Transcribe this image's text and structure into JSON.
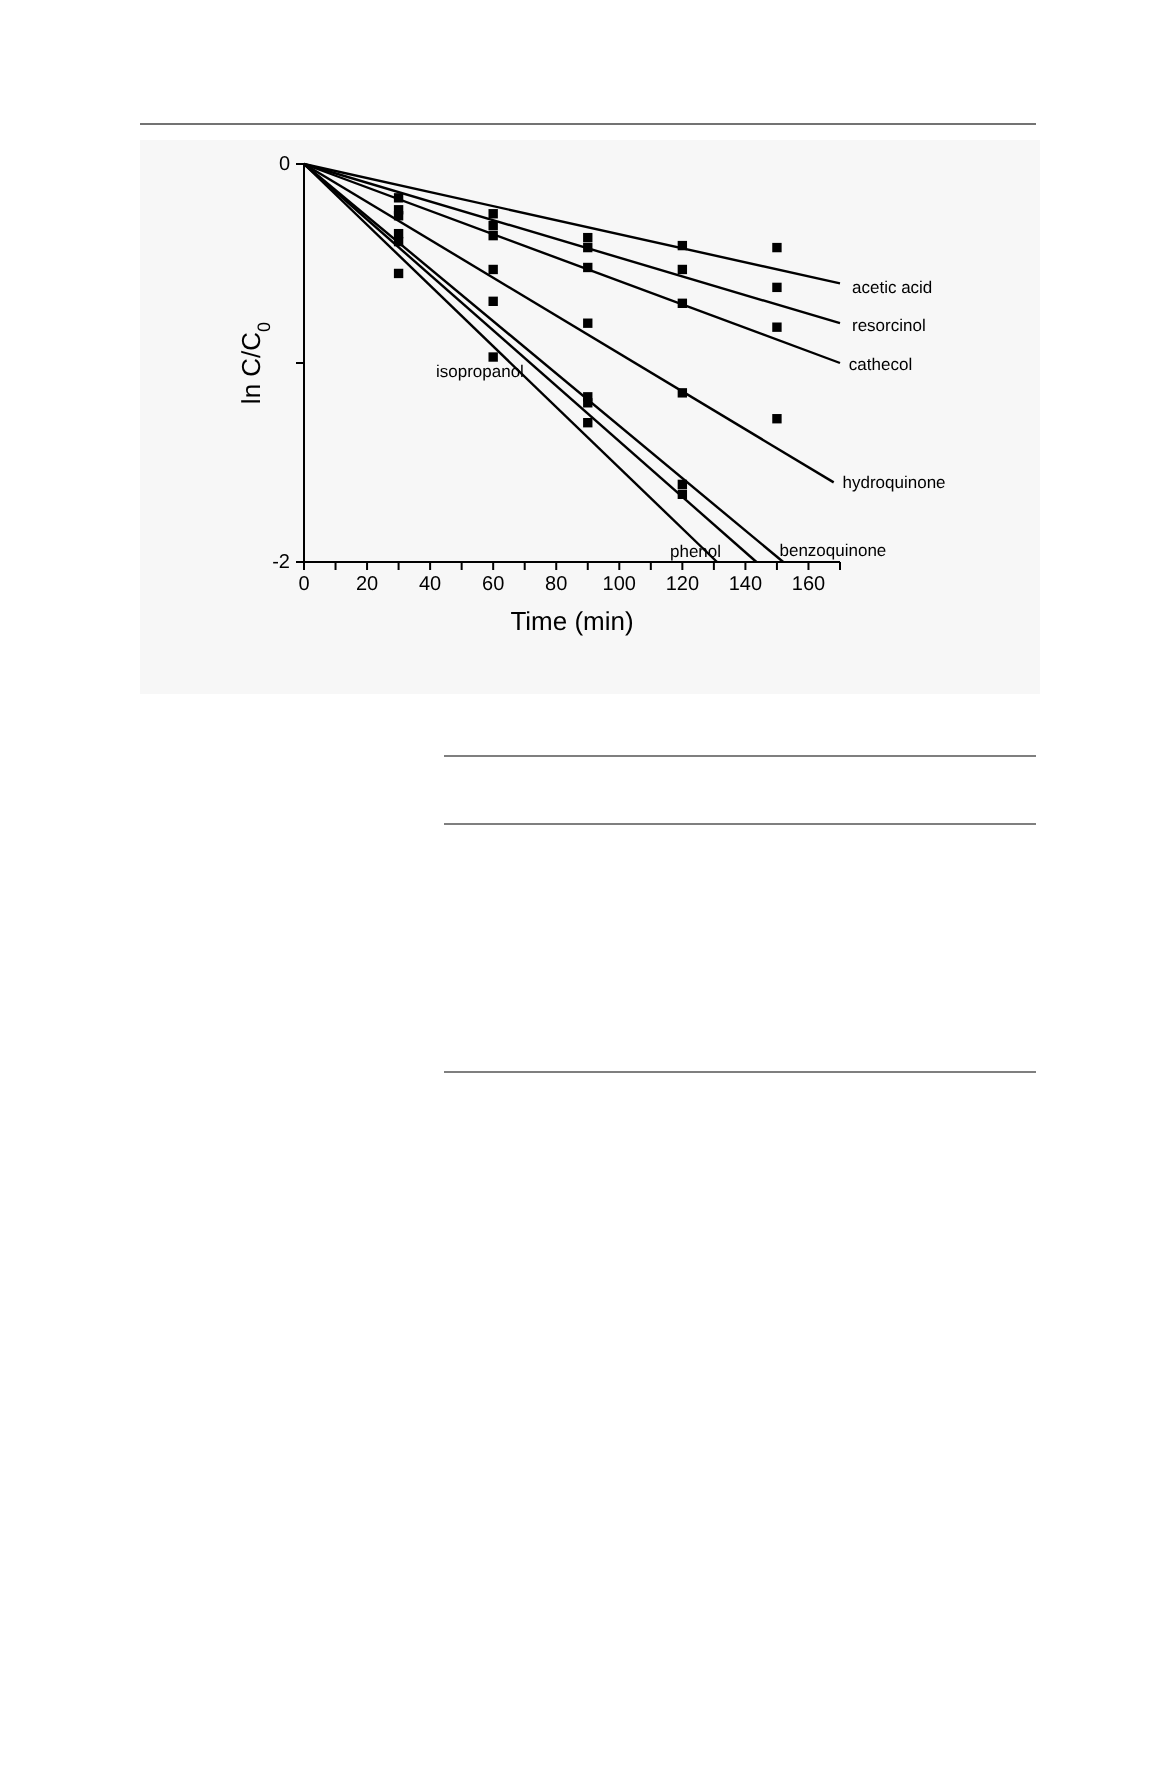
{
  "chart_data": {
    "type": "scatter",
    "xlabel": "Time (min)",
    "ylabel": "ln C/C$_{0}$",
    "xlim": [
      0,
      170
    ],
    "ylim": [
      -2,
      0
    ],
    "xticks": [
      0,
      {
        "value": 10,
        "label": null
      },
      20,
      {
        "value": 30,
        "label": null
      },
      40,
      {
        "value": 50,
        "label": null
      },
      60,
      {
        "value": 70,
        "label": null
      },
      80,
      {
        "value": 90,
        "label": null
      },
      100,
      {
        "value": 110,
        "label": null
      },
      120,
      {
        "value": 130,
        "label": null
      },
      140,
      {
        "value": 150,
        "label": null
      },
      160,
      {
        "value": 170,
        "label": null
      }
    ],
    "yticks": [
      -2,
      {
        "value": -1,
        "label": null
      },
      0
    ],
    "grid": false,
    "x": [
      30,
      60,
      90,
      120,
      150
    ],
    "series": [
      {
        "color": "#000000",
        "marker": "square",
        "values": [
          -0.17,
          -0.25,
          -0.37,
          -0.41,
          -0.42
        ]
      },
      {
        "color": "#000000",
        "marker": "square",
        "values": [
          -0.23,
          -0.31,
          -0.42,
          -0.53,
          -0.62
        ]
      },
      {
        "color": "#000000",
        "marker": "square",
        "values": [
          -0.26,
          -0.36,
          -0.52,
          -0.7,
          -0.82
        ]
      },
      {
        "color": "#000000",
        "marker": "square",
        "values": [
          -0.35,
          -0.53,
          -0.8,
          -1.15,
          -1.28
        ]
      },
      {
        "color": "#000000",
        "marker": "square",
        "values": [
          null,
          -0.69,
          -1.17,
          -1.61,
          null
        ]
      },
      {
        "color": "#000000",
        "marker": "square",
        "values": [
          -0.39,
          null,
          -1.2,
          -1.66,
          null
        ]
      },
      {
        "color": "#000000",
        "marker": "square",
        "values": [
          -0.55,
          -0.97,
          -1.3,
          null,
          null
        ]
      },
      {
        "type": "line",
        "color": "#000000",
        "x": [
          0,
          170
        ],
        "values": [
          0,
          -0.6
        ]
      },
      {
        "type": "line",
        "color": "#000000",
        "x": [
          0,
          170
        ],
        "values": [
          0,
          -0.8
        ]
      },
      {
        "type": "line",
        "color": "#000000",
        "x": [
          0,
          170
        ],
        "values": [
          0,
          -1.0
        ]
      },
      {
        "type": "line",
        "color": "#000000",
        "x": [
          0,
          168
        ],
        "values": [
          0,
          -1.6
        ]
      },
      {
        "type": "line",
        "color": "#000000",
        "x": [
          0,
          152
        ],
        "values": [
          0,
          -2
        ]
      },
      {
        "type": "line",
        "color": "#000000",
        "x": [
          0,
          143.5
        ],
        "values": [
          0,
          -2
        ]
      },
      {
        "type": "line",
        "color": "#000000",
        "x": [
          0,
          131
        ],
        "values": [
          0,
          -2
        ]
      }
    ],
    "annotations": [
      {
        "text": "acetic acid",
        "x": 170,
        "y": -0.62
      },
      {
        "text": "resorcinol",
        "x": 170,
        "y": -0.81
      },
      {
        "text": "cathecol",
        "x": 169,
        "y": -1.01
      },
      {
        "text": "hydroquinone",
        "x": 167,
        "y": -1.6
      },
      {
        "text": "benzoquinone",
        "x": 147,
        "y": -1.94
      },
      "phenol",
      "isopropanol"
    ]
  }
}
